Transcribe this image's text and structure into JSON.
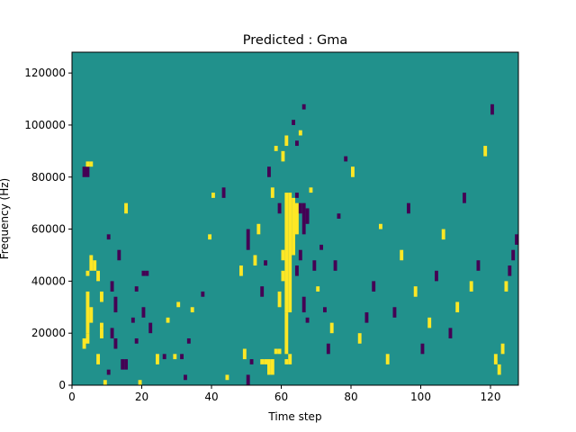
{
  "chart_data": {
    "type": "heatmap",
    "title": "Predicted : Gma",
    "xlabel": "Time step",
    "ylabel": "Frequency (Hz)",
    "xlim": [
      0,
      128
    ],
    "ylim": [
      0,
      128000
    ],
    "xticks": [
      0,
      20,
      40,
      60,
      80,
      100,
      120
    ],
    "yticks": [
      0,
      20000,
      40000,
      60000,
      80000,
      100000,
      120000
    ],
    "xtick_labels": [
      "0",
      "20",
      "40",
      "60",
      "80",
      "100",
      "120"
    ],
    "ytick_labels": [
      "0",
      "20000",
      "40000",
      "60000",
      "80000",
      "100000",
      "120000"
    ],
    "n_time_steps": 128,
    "n_freq_bins": 128,
    "colormap": "viridis",
    "colors": {
      "low": "#440154",
      "mid": "#21918c",
      "high": "#fde725"
    },
    "background_value": 0,
    "grid": false,
    "legend": "none",
    "cells": [
      [
        61,
        28000,
        74000,
        1
      ],
      [
        62,
        28000,
        74000,
        1
      ],
      [
        63,
        50000,
        72000,
        1
      ],
      [
        64,
        58000,
        70000,
        1
      ],
      [
        60,
        48000,
        52000,
        1
      ],
      [
        60,
        40000,
        44000,
        1
      ],
      [
        59,
        30000,
        36000,
        1
      ],
      [
        61,
        12000,
        28000,
        1
      ],
      [
        62,
        8000,
        12000,
        1
      ],
      [
        61,
        8000,
        10000,
        1
      ],
      [
        58,
        12000,
        14000,
        1
      ],
      [
        59,
        12000,
        14000,
        1
      ],
      [
        56,
        4000,
        10000,
        1
      ],
      [
        57,
        4000,
        10000,
        1
      ],
      [
        54,
        8000,
        10000,
        1
      ],
      [
        55,
        8000,
        10000,
        1
      ],
      [
        65,
        66000,
        70000,
        -1
      ],
      [
        66,
        58000,
        70000,
        -1
      ],
      [
        67,
        62000,
        68000,
        -1
      ],
      [
        64,
        72000,
        74000,
        -1
      ],
      [
        64,
        42000,
        46000,
        -1
      ],
      [
        65,
        48000,
        52000,
        -1
      ],
      [
        66,
        28000,
        34000,
        -1
      ],
      [
        67,
        24000,
        26000,
        -1
      ],
      [
        3,
        80000,
        84000,
        -1
      ],
      [
        4,
        80000,
        84000,
        -1
      ],
      [
        4,
        84000,
        86000,
        1
      ],
      [
        5,
        84000,
        86000,
        1
      ],
      [
        4,
        20000,
        36000,
        1
      ],
      [
        5,
        24000,
        30000,
        1
      ],
      [
        4,
        42000,
        44000,
        1
      ],
      [
        5,
        44000,
        50000,
        1
      ],
      [
        3,
        14000,
        18000,
        1
      ],
      [
        4,
        16000,
        20000,
        1
      ],
      [
        6,
        44000,
        48000,
        1
      ],
      [
        7,
        40000,
        44000,
        1
      ],
      [
        8,
        32000,
        36000,
        1
      ],
      [
        8,
        18000,
        22000,
        1
      ],
      [
        7,
        8000,
        12000,
        1
      ],
      [
        8,
        22000,
        24000,
        1
      ],
      [
        9,
        0,
        2000,
        1
      ],
      [
        10,
        4000,
        6000,
        -1
      ],
      [
        11,
        18000,
        22000,
        -1
      ],
      [
        12,
        14000,
        18000,
        -1
      ],
      [
        10,
        56000,
        58000,
        -1
      ],
      [
        12,
        28000,
        34000,
        -1
      ],
      [
        11,
        36000,
        40000,
        -1
      ],
      [
        13,
        48000,
        52000,
        -1
      ],
      [
        14,
        6000,
        10000,
        -1
      ],
      [
        15,
        6000,
        10000,
        -1
      ],
      [
        15,
        66000,
        70000,
        1
      ],
      [
        18,
        36000,
        38000,
        -1
      ],
      [
        17,
        24000,
        26000,
        -1
      ],
      [
        18,
        16000,
        18000,
        -1
      ],
      [
        20,
        42000,
        44000,
        -1
      ],
      [
        21,
        42000,
        44000,
        -1
      ],
      [
        19,
        0,
        2000,
        1
      ],
      [
        20,
        26000,
        30000,
        -1
      ],
      [
        22,
        20000,
        24000,
        -1
      ],
      [
        24,
        8000,
        12000,
        1
      ],
      [
        26,
        10000,
        12000,
        -1
      ],
      [
        27,
        24000,
        26000,
        1
      ],
      [
        29,
        10000,
        12000,
        1
      ],
      [
        30,
        30000,
        32000,
        1
      ],
      [
        31,
        10000,
        12000,
        -1
      ],
      [
        32,
        2000,
        4000,
        -1
      ],
      [
        33,
        16000,
        18000,
        -1
      ],
      [
        34,
        28000,
        30000,
        1
      ],
      [
        37,
        34000,
        36000,
        -1
      ],
      [
        39,
        56000,
        58000,
        1
      ],
      [
        40,
        72000,
        74000,
        1
      ],
      [
        43,
        72000,
        76000,
        -1
      ],
      [
        44,
        2000,
        4000,
        1
      ],
      [
        48,
        42000,
        46000,
        1
      ],
      [
        49,
        10000,
        14000,
        1
      ],
      [
        50,
        52000,
        60000,
        -1
      ],
      [
        50,
        0,
        4000,
        -1
      ],
      [
        51,
        8000,
        10000,
        -1
      ],
      [
        52,
        46000,
        50000,
        1
      ],
      [
        53,
        58000,
        62000,
        1
      ],
      [
        54,
        34000,
        38000,
        -1
      ],
      [
        55,
        46000,
        48000,
        -1
      ],
      [
        56,
        80000,
        84000,
        -1
      ],
      [
        57,
        72000,
        76000,
        1
      ],
      [
        58,
        90000,
        92000,
        1
      ],
      [
        59,
        66000,
        70000,
        -1
      ],
      [
        60,
        86000,
        90000,
        1
      ],
      [
        61,
        92000,
        96000,
        1
      ],
      [
        63,
        100000,
        102000,
        -1
      ],
      [
        64,
        92000,
        94000,
        -1
      ],
      [
        65,
        96000,
        98000,
        1
      ],
      [
        66,
        106000,
        108000,
        -1
      ],
      [
        68,
        74000,
        76000,
        1
      ],
      [
        69,
        44000,
        48000,
        -1
      ],
      [
        70,
        36000,
        38000,
        1
      ],
      [
        71,
        52000,
        54000,
        -1
      ],
      [
        72,
        28000,
        30000,
        -1
      ],
      [
        73,
        12000,
        16000,
        -1
      ],
      [
        74,
        20000,
        24000,
        1
      ],
      [
        75,
        44000,
        48000,
        -1
      ],
      [
        76,
        64000,
        66000,
        -1
      ],
      [
        78,
        86000,
        88000,
        -1
      ],
      [
        80,
        80000,
        84000,
        1
      ],
      [
        82,
        16000,
        20000,
        1
      ],
      [
        84,
        24000,
        28000,
        -1
      ],
      [
        86,
        36000,
        40000,
        -1
      ],
      [
        88,
        60000,
        62000,
        1
      ],
      [
        90,
        8000,
        12000,
        1
      ],
      [
        92,
        26000,
        30000,
        -1
      ],
      [
        94,
        48000,
        52000,
        1
      ],
      [
        96,
        66000,
        70000,
        -1
      ],
      [
        98,
        34000,
        38000,
        1
      ],
      [
        100,
        12000,
        16000,
        -1
      ],
      [
        102,
        22000,
        26000,
        1
      ],
      [
        104,
        40000,
        44000,
        -1
      ],
      [
        106,
        56000,
        60000,
        1
      ],
      [
        108,
        18000,
        22000,
        -1
      ],
      [
        110,
        28000,
        32000,
        1
      ],
      [
        112,
        70000,
        74000,
        -1
      ],
      [
        114,
        36000,
        40000,
        1
      ],
      [
        116,
        44000,
        48000,
        -1
      ],
      [
        118,
        88000,
        92000,
        1
      ],
      [
        120,
        104000,
        108000,
        -1
      ],
      [
        121,
        8000,
        12000,
        1
      ],
      [
        122,
        4000,
        8000,
        1
      ],
      [
        123,
        12000,
        16000,
        1
      ],
      [
        124,
        36000,
        40000,
        1
      ],
      [
        125,
        42000,
        46000,
        -1
      ],
      [
        126,
        48000,
        52000,
        -1
      ],
      [
        127,
        54000,
        58000,
        -1
      ]
    ]
  }
}
